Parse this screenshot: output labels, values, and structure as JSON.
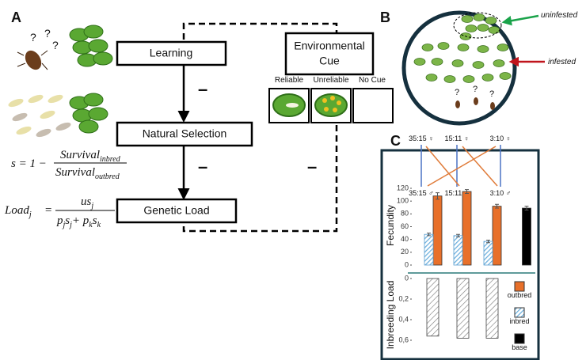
{
  "panel_a": {
    "label": "A",
    "boxes": [
      "Learning",
      "Natural Selection",
      "Genetic Load"
    ],
    "cue_title": [
      "Environmental",
      "Cue"
    ],
    "cue_options": [
      "Reliable",
      "Unreliable",
      "No Cue"
    ],
    "minus_signs": [
      "–",
      "–",
      "–"
    ],
    "question_marks": [
      "?",
      "?",
      "?"
    ],
    "formula_s": {
      "lhs": "s = 1 −",
      "num": "Survival",
      "num_sub": "inbred",
      "den": "Survival",
      "den_sub": "outbred"
    },
    "formula_load": {
      "lhs": "Load",
      "lhs_sub": "j",
      "equals": "=",
      "num": "us",
      "num_sub": "j",
      "den": [
        [
          "p",
          "j"
        ],
        [
          "s",
          "j"
        ],
        [
          "+ p",
          "k"
        ],
        [
          "s",
          "k"
        ]
      ]
    }
  },
  "panel_b": {
    "label": "B",
    "uninfested": "uninfested",
    "infested": "infested",
    "question_marks": [
      "?",
      "?",
      "?"
    ]
  },
  "chart_data": {
    "type": "bar",
    "label": "C",
    "crosses": [
      {
        "female": "35:15 ♀",
        "male": "35:15 ♂"
      },
      {
        "female": "15:11 ♀",
        "male": "15:11 ♂"
      },
      {
        "female": "3:10 ♀",
        "male": "3:10 ♂"
      }
    ],
    "y_label": "Fecundity",
    "ylim": [
      0,
      120
    ],
    "yticks": [
      0,
      20,
      40,
      60,
      80,
      100,
      120
    ],
    "series": [
      {
        "name": "outbred",
        "color": "#e8702a",
        "values": [
          108,
          115,
          92
        ],
        "errors": [
          5,
          3,
          3
        ]
      },
      {
        "name": "inbred",
        "color": "#8fc3e6",
        "values": [
          48,
          46,
          37
        ],
        "errors": [
          2,
          2,
          2
        ]
      },
      {
        "name": "base",
        "color": "#000000",
        "values": [
          89
        ],
        "errors": [
          3
        ]
      }
    ],
    "load": {
      "y_label": "Inbreeding Load",
      "ylim": [
        0,
        0.6
      ],
      "yticks": [
        0,
        {
          "value": 0.2,
          "label": "0,2"
        },
        {
          "value": 0.4,
          "label": "0,4"
        },
        {
          "value": 0.6,
          "label": "0,6"
        }
      ],
      "values": [
        0.56,
        0.58,
        0.58
      ]
    }
  }
}
